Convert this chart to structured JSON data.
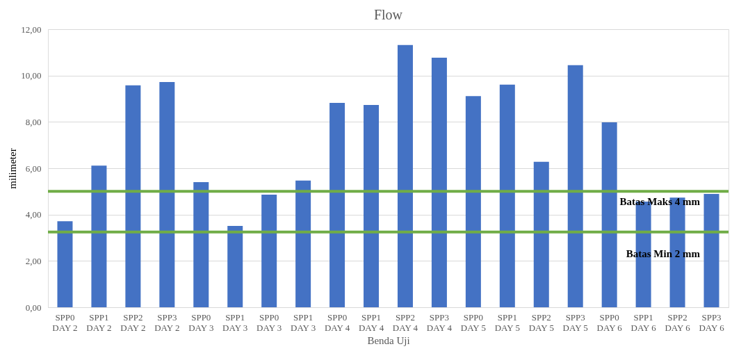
{
  "chart_data": {
    "type": "bar",
    "title": "Flow",
    "xlabel": "Benda Uji",
    "ylabel": "milimeter",
    "categories": [
      "SPP0 DAY 2",
      "SPP1 DAY 2",
      "SPP2 DAY 2",
      "SPP3 DAY 2",
      "SPP0 DAY 3",
      "SPP1 DAY 3",
      "SPP0 DAY 3",
      "SPP1 DAY 3",
      "SPP0 DAY 4",
      "SPP1 DAY 4",
      "SPP2 DAY 4",
      "SPP3 DAY 4",
      "SPP0 DAY 5",
      "SPP1 DAY 5",
      "SPP2 DAY 5",
      "SPP3 DAY 5",
      "SPP0 DAY 6",
      "SPP1 DAY 6",
      "SPP2 DAY 6",
      "SPP3 DAY 6"
    ],
    "values": [
      3.71,
      6.11,
      9.58,
      9.72,
      5.4,
      3.51,
      4.86,
      5.47,
      8.82,
      8.73,
      11.32,
      10.77,
      9.11,
      9.61,
      6.28,
      10.45,
      7.98,
      4.56,
      4.73,
      4.89
    ],
    "color": "#4472c4",
    "ylim": [
      0,
      12
    ],
    "yticks": [
      {
        "value": 0,
        "label": "0,00"
      },
      {
        "value": 2,
        "label": "2,00"
      },
      {
        "value": 4,
        "label": "4,00"
      },
      {
        "value": 6,
        "label": "6,00"
      },
      {
        "value": 8,
        "label": "8,00"
      },
      {
        "value": 10,
        "label": "10,00"
      },
      {
        "value": 12,
        "label": "12,00"
      }
    ],
    "grid": "y",
    "ref_lines": [
      {
        "axis": "y",
        "value": 5.0,
        "label": "Batas Maks 4 mm",
        "color": "#70ad47"
      },
      {
        "axis": "y",
        "value": 3.25,
        "label": "Batas Min 2 mm",
        "color": "#70ad47"
      }
    ]
  }
}
